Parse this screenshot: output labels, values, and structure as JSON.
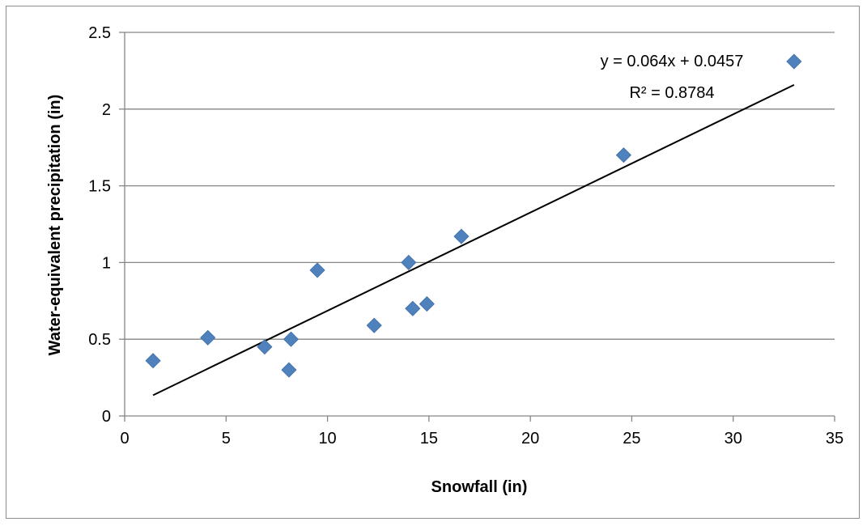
{
  "chart_data": {
    "type": "scatter",
    "title": "",
    "xlabel": "Snowfall (in)",
    "ylabel": "Water-equivalent precipitation (in)",
    "xlim": [
      0,
      35
    ],
    "ylim": [
      0,
      2.5
    ],
    "xticks": [
      "0",
      "5",
      "10",
      "15",
      "20",
      "25",
      "30",
      "35"
    ],
    "yticks": [
      "0",
      "0.5",
      "1",
      "1.5",
      "2",
      "2.5"
    ],
    "grid": "horizontal",
    "legend": "none",
    "marker": "diamond",
    "marker_color": "#4f81bd",
    "points": [
      {
        "x": 1.4,
        "y": 0.36
      },
      {
        "x": 4.1,
        "y": 0.51
      },
      {
        "x": 6.9,
        "y": 0.45
      },
      {
        "x": 8.1,
        "y": 0.3
      },
      {
        "x": 8.2,
        "y": 0.5
      },
      {
        "x": 9.5,
        "y": 0.95
      },
      {
        "x": 12.3,
        "y": 0.59
      },
      {
        "x": 14.0,
        "y": 1.0
      },
      {
        "x": 14.2,
        "y": 0.7
      },
      {
        "x": 14.9,
        "y": 0.73
      },
      {
        "x": 16.6,
        "y": 1.17
      },
      {
        "x": 24.6,
        "y": 1.7
      },
      {
        "x": 33.0,
        "y": 2.31
      }
    ],
    "trendline": {
      "type": "linear",
      "slope": 0.064,
      "intercept": 0.0457,
      "x_range": [
        1.4,
        33.0
      ],
      "color": "#000000",
      "equation_label": "y = 0.064x + 0.0457",
      "r2_label": "R² = 0.8784"
    }
  }
}
